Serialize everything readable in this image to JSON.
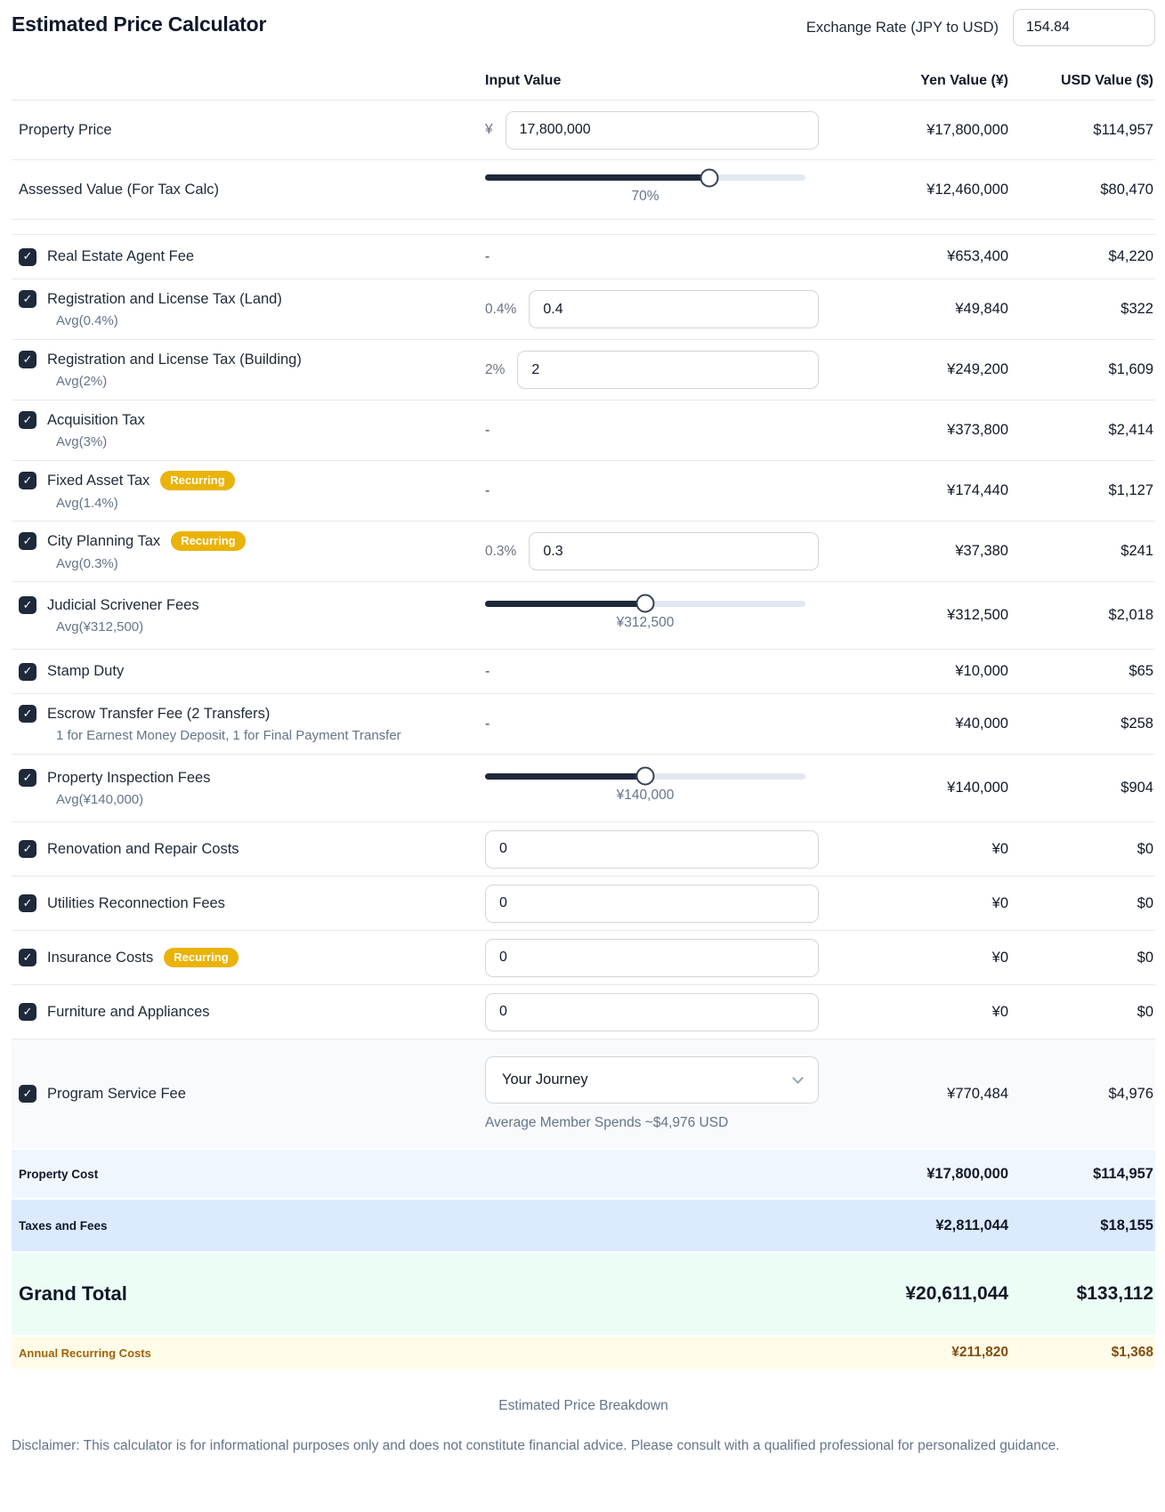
{
  "header": {
    "title": "Estimated Price Calculator",
    "exchange_rate_label": "Exchange Rate (JPY to USD)",
    "exchange_rate_value": "154.84"
  },
  "columns": {
    "input": "Input Value",
    "yen": "Yen Value (¥)",
    "usd": "USD Value ($)"
  },
  "top_rows": [
    {
      "label": "Property Price",
      "input": {
        "type": "currency",
        "prefix": "¥",
        "value": "17,800,000"
      },
      "yen": "¥17,800,000",
      "usd": "$114,957"
    },
    {
      "label": "Assessed Value (For Tax Calc)",
      "input": {
        "type": "slider",
        "pct": 70,
        "display": "70%"
      },
      "yen": "¥12,460,000",
      "usd": "$80,470"
    }
  ],
  "fee_rows": [
    {
      "label": "Real Estate Agent Fee",
      "checked": true,
      "input": {
        "type": "dash",
        "value": "-"
      },
      "yen": "¥653,400",
      "usd": "$4,220"
    },
    {
      "label": "Registration and License Tax (Land)",
      "sublabel": "Avg(0.4%)",
      "checked": true,
      "input": {
        "type": "percent",
        "prefix": "0.4%",
        "value": "0.4"
      },
      "yen": "¥49,840",
      "usd": "$322"
    },
    {
      "label": "Registration and License Tax (Building)",
      "sublabel": "Avg(2%)",
      "checked": true,
      "input": {
        "type": "percent",
        "prefix": "2%",
        "value": "2"
      },
      "yen": "¥249,200",
      "usd": "$1,609"
    },
    {
      "label": "Acquisition Tax",
      "sublabel": "Avg(3%)",
      "checked": true,
      "input": {
        "type": "dash",
        "value": "-"
      },
      "yen": "¥373,800",
      "usd": "$2,414"
    },
    {
      "label": "Fixed Asset Tax",
      "badge": "Recurring",
      "sublabel": "Avg(1.4%)",
      "checked": true,
      "input": {
        "type": "dash",
        "value": "-"
      },
      "yen": "¥174,440",
      "usd": "$1,127"
    },
    {
      "label": "City Planning Tax",
      "badge": "Recurring",
      "sublabel": "Avg(0.3%)",
      "checked": true,
      "input": {
        "type": "percent",
        "prefix": "0.3%",
        "value": "0.3"
      },
      "yen": "¥37,380",
      "usd": "$241"
    },
    {
      "label": "Judicial Scrivener Fees",
      "sublabel": "Avg(¥312,500)",
      "checked": true,
      "input": {
        "type": "slider",
        "pct": 50,
        "display": "¥312,500"
      },
      "yen": "¥312,500",
      "usd": "$2,018"
    },
    {
      "label": "Stamp Duty",
      "checked": true,
      "input": {
        "type": "dash",
        "value": "-"
      },
      "yen": "¥10,000",
      "usd": "$65"
    },
    {
      "label": "Escrow Transfer Fee (2 Transfers)",
      "sublabel": "1 for Earnest Money Deposit, 1 for Final Payment Transfer",
      "checked": true,
      "input": {
        "type": "dash",
        "value": "-"
      },
      "yen": "¥40,000",
      "usd": "$258"
    },
    {
      "label": "Property Inspection Fees",
      "sublabel": "Avg(¥140,000)",
      "checked": true,
      "input": {
        "type": "slider",
        "pct": 50,
        "display": "¥140,000"
      },
      "yen": "¥140,000",
      "usd": "$904"
    },
    {
      "label": "Renovation and Repair Costs",
      "checked": true,
      "input": {
        "type": "number",
        "value": "0"
      },
      "yen": "¥0",
      "usd": "$0"
    },
    {
      "label": "Utilities Reconnection Fees",
      "checked": true,
      "input": {
        "type": "number",
        "value": "0"
      },
      "yen": "¥0",
      "usd": "$0"
    },
    {
      "label": "Insurance Costs",
      "badge": "Recurring",
      "checked": true,
      "input": {
        "type": "number",
        "value": "0"
      },
      "yen": "¥0",
      "usd": "$0"
    },
    {
      "label": "Furniture and Appliances",
      "checked": true,
      "input": {
        "type": "number",
        "value": "0"
      },
      "yen": "¥0",
      "usd": "$0"
    },
    {
      "label": "Program Service Fee",
      "checked": true,
      "highlight": true,
      "input": {
        "type": "select",
        "value": "Your Journey",
        "note": "Average Member Spends ~$4,976 USD"
      },
      "yen": "¥770,484",
      "usd": "$4,976"
    }
  ],
  "summary_rows": [
    {
      "key": "property-cost",
      "label": "Property Cost",
      "yen": "¥17,800,000",
      "usd": "$114,957"
    },
    {
      "key": "taxes-and-fees",
      "label": "Taxes and Fees",
      "yen": "¥2,811,044",
      "usd": "$18,155"
    },
    {
      "key": "grand-total",
      "label": "Grand Total",
      "yen": "¥20,611,044",
      "usd": "$133,112"
    },
    {
      "key": "annual-recurring",
      "label": "Annual Recurring Costs",
      "yen": "¥211,820",
      "usd": "$1,368"
    }
  ],
  "footer": {
    "caption": "Estimated Price Breakdown",
    "disclaimer": "Disclaimer: This calculator is for informational purposes only and does not constitute financial advice. Please consult with a qualified professional for personalized guidance."
  },
  "colors": {
    "checkbox_bg": "#1e293b",
    "badge_bg": "#eab308",
    "slider_fill": "#1e293b",
    "summary_property_bg": "#eff6ff",
    "summary_taxes_bg": "#dbeafe",
    "grand_total_bg": "#ecfdf5",
    "annual_recurring_bg": "#fefce8",
    "annual_recurring_text": "#a16207"
  }
}
